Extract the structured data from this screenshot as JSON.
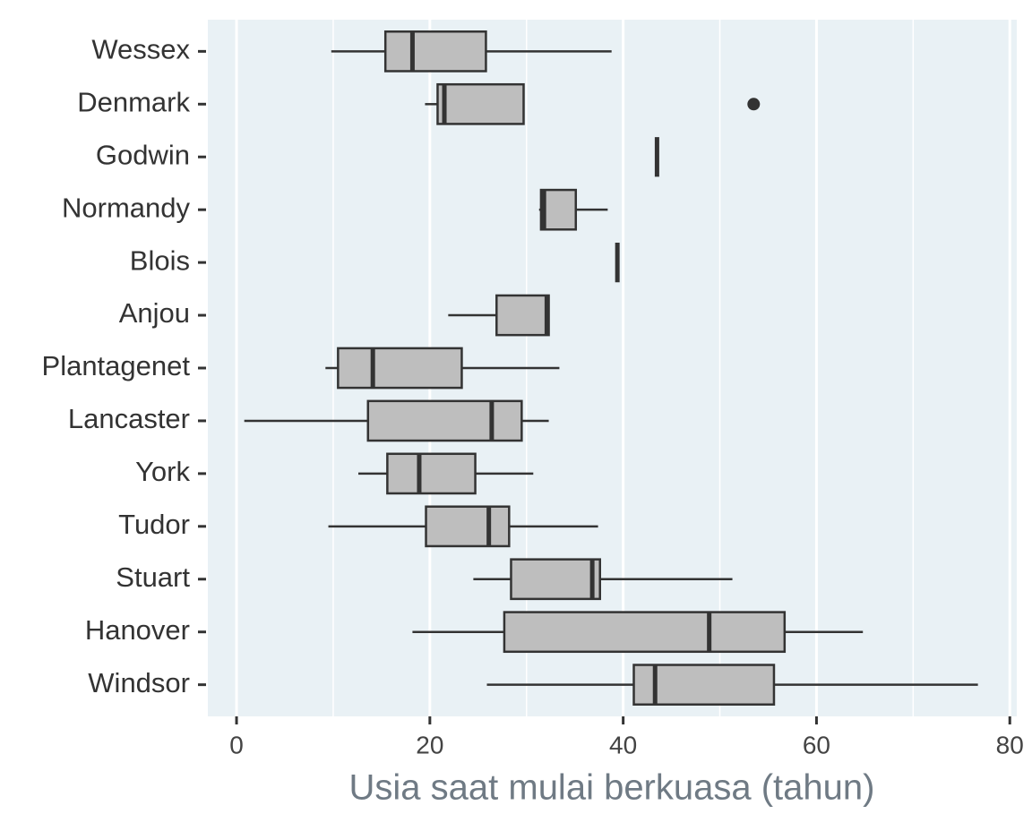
{
  "chart_data": {
    "type": "boxplot",
    "orientation": "horizontal",
    "x_label": "Usia saat mulai berkuasa (tahun)",
    "categories": [
      "Wessex",
      "Denmark",
      "Godwin",
      "Normandy",
      "Blois",
      "Anjou",
      "Plantagenet",
      "Lancaster",
      "York",
      "Tudor",
      "Stuart",
      "Hanover",
      "Windsor"
    ],
    "stats": [
      {
        "min": 9.8,
        "q1": 15.4,
        "median": 18.2,
        "q3": 25.8,
        "max": 38.8
      },
      {
        "min": 19.5,
        "q1": 20.8,
        "median": 21.5,
        "q3": 29.7,
        "max": 29.7,
        "outliers": [
          53.5
        ]
      },
      {
        "min": 43.5,
        "q1": 43.5,
        "median": 43.5,
        "q3": 43.5,
        "max": 43.5
      },
      {
        "min": 31.3,
        "q1": 31.5,
        "median": 31.8,
        "q3": 35.1,
        "max": 38.4
      },
      {
        "min": 39.4,
        "q1": 39.4,
        "median": 39.4,
        "q3": 39.4,
        "max": 39.4
      },
      {
        "min": 21.9,
        "q1": 26.9,
        "median": 32.1,
        "q3": 32.3,
        "max": 32.3
      },
      {
        "min": 9.2,
        "q1": 10.5,
        "median": 14.1,
        "q3": 23.3,
        "max": 33.4
      },
      {
        "min": 0.8,
        "q1": 13.6,
        "median": 26.4,
        "q3": 29.5,
        "max": 32.3
      },
      {
        "min": 12.6,
        "q1": 15.6,
        "median": 18.9,
        "q3": 24.7,
        "max": 30.7
      },
      {
        "min": 9.5,
        "q1": 19.6,
        "median": 26.1,
        "q3": 28.2,
        "max": 37.4
      },
      {
        "min": 24.5,
        "q1": 28.4,
        "median": 36.8,
        "q3": 37.6,
        "max": 51.3
      },
      {
        "min": 18.2,
        "q1": 27.7,
        "median": 48.9,
        "q3": 56.7,
        "max": 64.8
      },
      {
        "min": 25.9,
        "q1": 41.1,
        "median": 43.3,
        "q3": 55.6,
        "max": 76.7
      }
    ],
    "box_color": "#bebebe",
    "line_color": "#333333",
    "panel_color": "#e9f1f5",
    "xlim": [
      -2.97,
      80.72
    ],
    "xticks": [
      0,
      20,
      40,
      60,
      80
    ],
    "grid": true
  }
}
